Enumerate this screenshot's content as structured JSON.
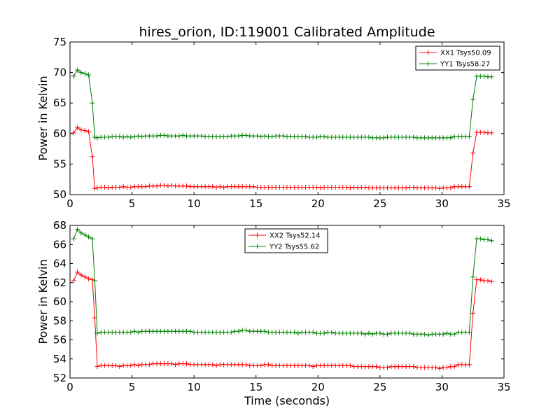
{
  "figure": {
    "title": "hires_orion, ID:119001 Calibrated Amplitude",
    "xlabel": "Time (seconds)"
  },
  "chart_data": [
    {
      "type": "line",
      "title": "hires_orion, ID:119001 Calibrated Amplitude",
      "xlabel": "",
      "ylabel": "Power in Kelvin",
      "xlim": [
        0,
        35
      ],
      "ylim": [
        50,
        75
      ],
      "xticks": [
        0,
        5,
        10,
        15,
        20,
        25,
        30,
        35
      ],
      "yticks": [
        50,
        55,
        60,
        65,
        70,
        75
      ],
      "grid": false,
      "legend_position": "top-right",
      "marker": "+",
      "x": [
        0.3,
        0.6,
        0.9,
        1.2,
        1.5,
        1.8,
        2.0,
        2.2,
        2.5,
        2.8,
        3.1,
        3.4,
        3.7,
        4.0,
        4.3,
        4.6,
        4.9,
        5.2,
        5.5,
        5.8,
        6.1,
        6.4,
        6.7,
        7.0,
        7.3,
        7.6,
        7.9,
        8.2,
        8.5,
        8.8,
        9.1,
        9.4,
        9.7,
        10.0,
        10.3,
        10.6,
        10.9,
        11.2,
        11.5,
        11.8,
        12.1,
        12.4,
        12.7,
        13.0,
        13.3,
        13.6,
        13.9,
        14.2,
        14.5,
        14.8,
        15.1,
        15.4,
        15.7,
        16.0,
        16.3,
        16.6,
        16.9,
        17.2,
        17.5,
        17.8,
        18.1,
        18.4,
        18.7,
        19.0,
        19.3,
        19.6,
        19.9,
        20.2,
        20.5,
        20.8,
        21.1,
        21.4,
        21.7,
        22.0,
        22.3,
        22.6,
        22.9,
        23.2,
        23.5,
        23.8,
        24.1,
        24.4,
        24.7,
        25.0,
        25.3,
        25.6,
        25.9,
        26.2,
        26.5,
        26.8,
        27.1,
        27.4,
        27.7,
        28.0,
        28.3,
        28.6,
        28.9,
        29.2,
        29.5,
        29.8,
        30.1,
        30.4,
        30.7,
        31.0,
        31.3,
        31.6,
        31.9,
        32.2,
        32.5,
        32.8,
        33.1,
        33.4,
        33.7,
        34.0
      ],
      "series": [
        {
          "name": "XX1 Tsys50.09",
          "color": "#ff0000",
          "values": [
            60.1,
            61.0,
            60.6,
            60.5,
            60.3,
            56.2,
            51.0,
            51.1,
            51.2,
            51.2,
            51.1,
            51.2,
            51.2,
            51.2,
            51.3,
            51.2,
            51.2,
            51.3,
            51.3,
            51.3,
            51.3,
            51.4,
            51.4,
            51.4,
            51.5,
            51.5,
            51.4,
            51.5,
            51.4,
            51.4,
            51.4,
            51.4,
            51.3,
            51.3,
            51.3,
            51.3,
            51.3,
            51.3,
            51.3,
            51.2,
            51.3,
            51.2,
            51.3,
            51.3,
            51.3,
            51.3,
            51.3,
            51.3,
            51.3,
            51.3,
            51.2,
            51.2,
            51.2,
            51.2,
            51.2,
            51.2,
            51.2,
            51.2,
            51.2,
            51.2,
            51.2,
            51.2,
            51.2,
            51.2,
            51.2,
            51.2,
            51.2,
            51.1,
            51.2,
            51.2,
            51.2,
            51.2,
            51.2,
            51.2,
            51.2,
            51.1,
            51.2,
            51.1,
            51.2,
            51.2,
            51.1,
            51.1,
            51.1,
            51.1,
            51.1,
            51.1,
            51.1,
            51.1,
            51.1,
            51.1,
            51.1,
            51.2,
            51.2,
            51.1,
            51.1,
            51.1,
            51.1,
            51.1,
            51.1,
            51.0,
            51.1,
            51.1,
            51.1,
            51.3,
            51.3,
            51.3,
            51.3,
            51.3,
            56.8,
            60.2,
            60.2,
            60.2,
            60.1,
            60.1
          ]
        },
        {
          "name": "YY1 Tsys58.27",
          "color": "#008000",
          "values": [
            69.4,
            70.4,
            70.0,
            69.8,
            69.6,
            65.0,
            59.4,
            59.3,
            59.4,
            59.4,
            59.4,
            59.5,
            59.5,
            59.5,
            59.4,
            59.5,
            59.4,
            59.5,
            59.6,
            59.5,
            59.6,
            59.6,
            59.6,
            59.6,
            59.7,
            59.7,
            59.6,
            59.6,
            59.6,
            59.6,
            59.7,
            59.6,
            59.6,
            59.6,
            59.6,
            59.6,
            59.5,
            59.5,
            59.5,
            59.5,
            59.5,
            59.5,
            59.5,
            59.6,
            59.6,
            59.6,
            59.7,
            59.7,
            59.6,
            59.6,
            59.6,
            59.5,
            59.6,
            59.5,
            59.5,
            59.6,
            59.6,
            59.6,
            59.5,
            59.5,
            59.5,
            59.5,
            59.5,
            59.5,
            59.4,
            59.4,
            59.4,
            59.5,
            59.5,
            59.4,
            59.4,
            59.4,
            59.4,
            59.4,
            59.4,
            59.4,
            59.4,
            59.4,
            59.4,
            59.4,
            59.4,
            59.3,
            59.3,
            59.3,
            59.3,
            59.4,
            59.4,
            59.4,
            59.4,
            59.4,
            59.4,
            59.4,
            59.4,
            59.3,
            59.3,
            59.3,
            59.3,
            59.3,
            59.3,
            59.3,
            59.3,
            59.3,
            59.3,
            59.5,
            59.5,
            59.5,
            59.5,
            59.5,
            65.6,
            69.4,
            69.4,
            69.4,
            69.3,
            69.3
          ]
        }
      ]
    },
    {
      "type": "line",
      "title": "",
      "xlabel": "Time (seconds)",
      "ylabel": "Power in Kelvin",
      "xlim": [
        0,
        35
      ],
      "ylim": [
        52,
        68
      ],
      "xticks": [
        0,
        5,
        10,
        15,
        20,
        25,
        30,
        35
      ],
      "yticks": [
        52,
        54,
        56,
        58,
        60,
        62,
        64,
        66,
        68
      ],
      "grid": false,
      "legend_position": "top-center",
      "marker": "+",
      "x": [
        0.3,
        0.6,
        0.9,
        1.2,
        1.5,
        1.8,
        2.0,
        2.2,
        2.5,
        2.8,
        3.1,
        3.4,
        3.7,
        4.0,
        4.3,
        4.6,
        4.9,
        5.2,
        5.5,
        5.8,
        6.1,
        6.4,
        6.7,
        7.0,
        7.3,
        7.6,
        7.9,
        8.2,
        8.5,
        8.8,
        9.1,
        9.4,
        9.7,
        10.0,
        10.3,
        10.6,
        10.9,
        11.2,
        11.5,
        11.8,
        12.1,
        12.4,
        12.7,
        13.0,
        13.3,
        13.6,
        13.9,
        14.2,
        14.5,
        14.8,
        15.1,
        15.4,
        15.7,
        16.0,
        16.3,
        16.6,
        16.9,
        17.2,
        17.5,
        17.8,
        18.1,
        18.4,
        18.7,
        19.0,
        19.3,
        19.6,
        19.9,
        20.2,
        20.5,
        20.8,
        21.1,
        21.4,
        21.7,
        22.0,
        22.3,
        22.6,
        22.9,
        23.2,
        23.5,
        23.8,
        24.1,
        24.4,
        24.7,
        25.0,
        25.3,
        25.6,
        25.9,
        26.2,
        26.5,
        26.8,
        27.1,
        27.4,
        27.7,
        28.0,
        28.3,
        28.6,
        28.9,
        29.2,
        29.5,
        29.8,
        30.1,
        30.4,
        30.7,
        31.0,
        31.3,
        31.6,
        31.9,
        32.2,
        32.5,
        32.8,
        33.1,
        33.4,
        33.7,
        34.0
      ],
      "series": [
        {
          "name": "XX2 Tsys52.14",
          "color": "#ff0000",
          "values": [
            62.2,
            63.1,
            62.8,
            62.6,
            62.4,
            62.3,
            58.3,
            53.2,
            53.3,
            53.3,
            53.3,
            53.3,
            53.3,
            53.2,
            53.3,
            53.3,
            53.3,
            53.4,
            53.3,
            53.4,
            53.4,
            53.4,
            53.5,
            53.5,
            53.5,
            53.5,
            53.5,
            53.5,
            53.4,
            53.5,
            53.5,
            53.5,
            53.4,
            53.4,
            53.4,
            53.4,
            53.4,
            53.4,
            53.4,
            53.3,
            53.4,
            53.4,
            53.4,
            53.4,
            53.4,
            53.4,
            53.4,
            53.4,
            53.3,
            53.3,
            53.3,
            53.3,
            53.4,
            53.4,
            53.3,
            53.3,
            53.3,
            53.3,
            53.3,
            53.3,
            53.3,
            53.3,
            53.3,
            53.3,
            53.3,
            53.2,
            53.3,
            53.3,
            53.3,
            53.3,
            53.3,
            53.3,
            53.3,
            53.3,
            53.3,
            53.3,
            53.2,
            53.2,
            53.2,
            53.2,
            53.2,
            53.2,
            53.2,
            53.1,
            53.1,
            53.1,
            53.2,
            53.2,
            53.2,
            53.2,
            53.2,
            53.2,
            53.2,
            53.1,
            53.1,
            53.1,
            53.1,
            53.1,
            53.1,
            53.0,
            53.1,
            53.1,
            53.2,
            53.2,
            53.4,
            53.4,
            53.4,
            53.4,
            58.8,
            62.3,
            62.3,
            62.2,
            62.2,
            62.1
          ]
        },
        {
          "name": "YY2 Tsys55.62",
          "color": "#008000",
          "values": [
            66.6,
            67.6,
            67.2,
            67.0,
            66.8,
            66.6,
            62.2,
            56.7,
            56.8,
            56.8,
            56.8,
            56.8,
            56.8,
            56.8,
            56.8,
            56.8,
            56.8,
            56.9,
            56.8,
            56.9,
            56.9,
            56.9,
            56.9,
            56.9,
            56.9,
            56.9,
            56.9,
            56.9,
            56.9,
            56.9,
            56.9,
            56.9,
            56.9,
            56.8,
            56.8,
            56.8,
            56.8,
            56.8,
            56.8,
            56.8,
            56.8,
            56.8,
            56.8,
            56.8,
            56.9,
            56.9,
            57.0,
            57.0,
            56.9,
            56.9,
            56.9,
            56.9,
            56.9,
            56.8,
            56.8,
            56.8,
            56.8,
            56.8,
            56.8,
            56.8,
            56.8,
            56.7,
            56.8,
            56.8,
            56.8,
            56.8,
            56.7,
            56.7,
            56.7,
            56.8,
            56.8,
            56.7,
            56.7,
            56.7,
            56.7,
            56.7,
            56.7,
            56.7,
            56.7,
            56.6,
            56.7,
            56.6,
            56.7,
            56.7,
            56.6,
            56.6,
            56.7,
            56.7,
            56.7,
            56.7,
            56.7,
            56.7,
            56.6,
            56.6,
            56.6,
            56.6,
            56.5,
            56.6,
            56.6,
            56.6,
            56.6,
            56.7,
            56.6,
            56.6,
            56.8,
            56.8,
            56.8,
            56.8,
            62.6,
            66.6,
            66.6,
            66.5,
            66.5,
            66.4
          ]
        }
      ]
    }
  ]
}
